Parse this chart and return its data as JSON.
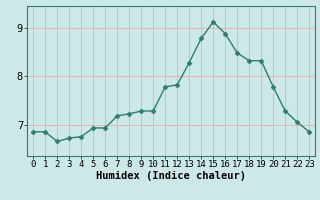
{
  "x": [
    0,
    1,
    2,
    3,
    4,
    5,
    6,
    7,
    8,
    9,
    10,
    11,
    12,
    13,
    14,
    15,
    16,
    17,
    18,
    19,
    20,
    21,
    22,
    23
  ],
  "y": [
    6.85,
    6.85,
    6.65,
    6.72,
    6.75,
    6.93,
    6.93,
    7.18,
    7.22,
    7.28,
    7.28,
    7.78,
    7.82,
    8.28,
    8.78,
    9.12,
    8.88,
    8.48,
    8.32,
    8.32,
    7.78,
    7.28,
    7.05,
    6.85
  ],
  "line_color": "#2e7d6e",
  "marker": "D",
  "marker_size": 2.5,
  "bg_color": "#cde8e8",
  "grid_color": "#f0a0a0",
  "xlabel": "Humidex (Indice chaleur)",
  "yticks": [
    7,
    8,
    9
  ],
  "xticks": [
    0,
    1,
    2,
    3,
    4,
    5,
    6,
    7,
    8,
    9,
    10,
    11,
    12,
    13,
    14,
    15,
    16,
    17,
    18,
    19,
    20,
    21,
    22,
    23
  ],
  "ylim": [
    6.35,
    9.45
  ],
  "xlim": [
    -0.5,
    23.5
  ],
  "xlabel_fontsize": 7.5,
  "tick_fontsize": 6.5,
  "linewidth": 1.0
}
